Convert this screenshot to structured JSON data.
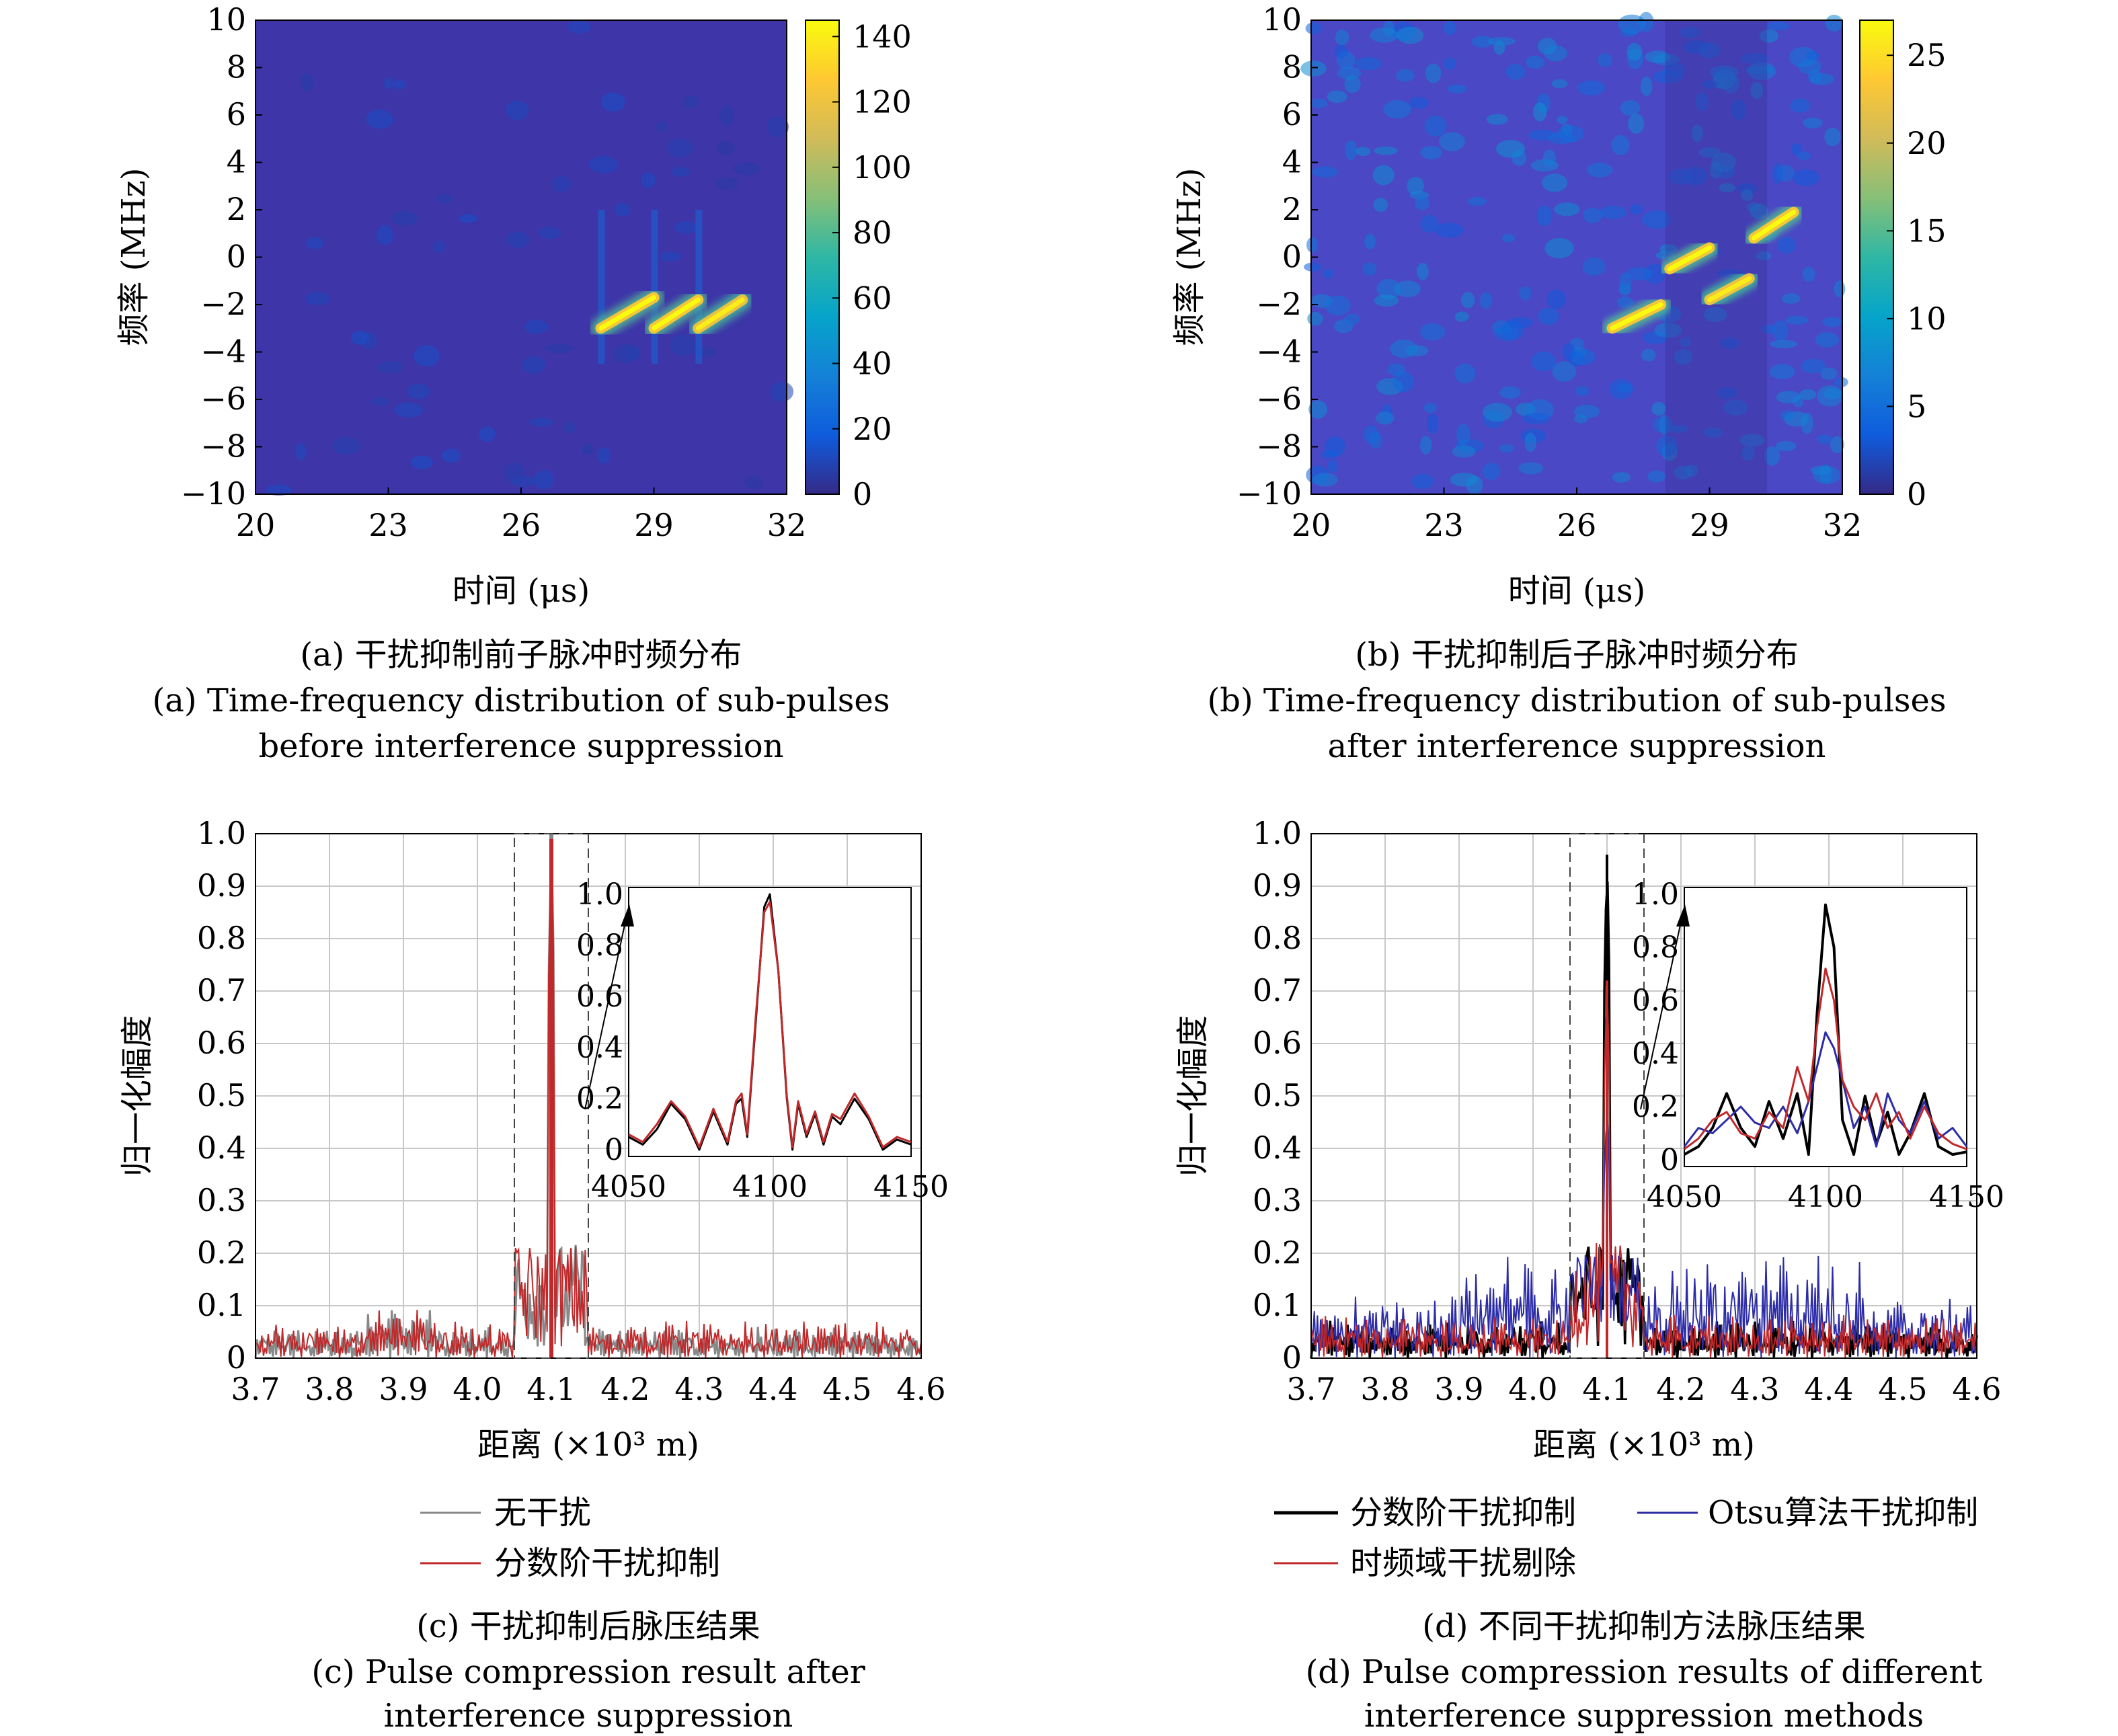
{
  "panels": {
    "a": {
      "caption_cn": "(a) 干扰抑制前子脉冲时频分布",
      "caption_en_1": "(a) Time-frequency distribution of sub-pulses",
      "caption_en_2": "before interference suppression",
      "xlabel": "时间 (μs)",
      "ylabel": "频率 (MHz)",
      "x_ticks": [
        "20",
        "23",
        "26",
        "29",
        "32"
      ],
      "y_ticks": [
        "10",
        "8",
        "6",
        "4",
        "2",
        "0",
        "−2",
        "−4",
        "−6",
        "−8",
        "−10"
      ],
      "colorbar_ticks": [
        "140",
        "120",
        "100",
        "80",
        "60",
        "40",
        "20",
        "0"
      ]
    },
    "b": {
      "caption_cn": "(b) 干扰抑制后子脉冲时频分布",
      "caption_en_1": "(b) Time-frequency distribution of sub-pulses",
      "caption_en_2": "after interference suppression",
      "xlabel": "时间 (μs)",
      "ylabel": "频率 (MHz)",
      "x_ticks": [
        "20",
        "23",
        "26",
        "29",
        "32"
      ],
      "y_ticks": [
        "10",
        "8",
        "6",
        "4",
        "2",
        "0",
        "−2",
        "−4",
        "−6",
        "−8",
        "−10"
      ],
      "colorbar_ticks": [
        "25",
        "20",
        "15",
        "10",
        "5",
        "0"
      ]
    },
    "c": {
      "caption_cn": "(c) 干扰抑制后脉压结果",
      "caption_en_1": "(c) Pulse compression result after",
      "caption_en_2": "interference suppression",
      "xlabel": "距离 (×10³ m)",
      "ylabel": "归一化幅度",
      "x_ticks": [
        "3.7",
        "3.8",
        "3.9",
        "4.0",
        "4.1",
        "4.2",
        "4.3",
        "4.4",
        "4.5",
        "4.6"
      ],
      "y_ticks": [
        "1.0",
        "0.9",
        "0.8",
        "0.7",
        "0.6",
        "0.5",
        "0.4",
        "0.3",
        "0.2",
        "0.1",
        "0"
      ],
      "inset_x_ticks": [
        "4050",
        "4100",
        "4150"
      ],
      "inset_y_ticks": [
        "1.0",
        "0.8",
        "0.6",
        "0.4",
        "0.2",
        "0"
      ],
      "legend": [
        "无干扰",
        "分数阶干扰抑制"
      ]
    },
    "d": {
      "caption_cn": "(d) 不同干扰抑制方法脉压结果",
      "caption_en_1": "(d) Pulse compression results of different",
      "caption_en_2": "interference suppression methods",
      "xlabel": "距离 (×10³ m)",
      "ylabel": "归一化幅度",
      "x_ticks": [
        "3.7",
        "3.8",
        "3.9",
        "4.0",
        "4.1",
        "4.2",
        "4.3",
        "4.4",
        "4.5",
        "4.6"
      ],
      "y_ticks": [
        "1.0",
        "0.9",
        "0.8",
        "0.7",
        "0.6",
        "0.5",
        "0.4",
        "0.3",
        "0.2",
        "0.1",
        "0"
      ],
      "inset_x_ticks": [
        "4050",
        "4100",
        "4150"
      ],
      "inset_y_ticks": [
        "1.0",
        "0.8",
        "0.6",
        "0.4",
        "0.2",
        "0"
      ],
      "legend": [
        "分数阶干扰抑制",
        "Otsu算法干扰抑制",
        "时频域干扰剔除"
      ]
    }
  },
  "colors": {
    "black": "#000000",
    "red": "#c0282a",
    "blue": "#2c2ca8",
    "grey": "#888888",
    "grid": "#c8c8c8",
    "parula": [
      "#352a87",
      "#0f5cdd",
      "#1481d6",
      "#06a4ca",
      "#2eb7a4",
      "#87bf77",
      "#d1bb59",
      "#fec832",
      "#f9fb0e"
    ]
  },
  "chart_data": [
    {
      "type": "heatmap",
      "panel": "a",
      "xlim": [
        20,
        32
      ],
      "ylim": [
        -10,
        10
      ],
      "clim": [
        0,
        145
      ],
      "background_level": 8,
      "segments": [
        {
          "t0": 27.8,
          "f0": -3.0,
          "t1": 29.0,
          "f1": -1.7,
          "peak": 145
        },
        {
          "t0": 29.0,
          "f0": -3.0,
          "t1": 30.0,
          "f1": -1.8,
          "peak": 145
        },
        {
          "t0": 30.0,
          "f0": -3.0,
          "t1": 31.0,
          "f1": -1.8,
          "peak": 140
        }
      ]
    },
    {
      "type": "heatmap",
      "panel": "b",
      "xlim": [
        20,
        32
      ],
      "ylim": [
        -10,
        10
      ],
      "clim": [
        0,
        27
      ],
      "background_level": 3,
      "segments": [
        {
          "t0": 26.8,
          "f0": -3.0,
          "t1": 27.9,
          "f1": -2.0,
          "peak": 27
        },
        {
          "t0": 28.1,
          "f0": -0.5,
          "t1": 29.0,
          "f1": 0.4,
          "peak": 27
        },
        {
          "t0": 29.0,
          "f0": -1.8,
          "t1": 29.9,
          "f1": -0.9,
          "peak": 26
        },
        {
          "t0": 30.0,
          "f0": 0.8,
          "t1": 30.9,
          "f1": 1.9,
          "peak": 27
        }
      ]
    },
    {
      "type": "line",
      "panel": "c",
      "xlim": [
        3.7,
        4.6
      ],
      "ylim": [
        0,
        1.0
      ],
      "zoom_box_x": [
        4.05,
        4.15
      ],
      "series": [
        {
          "name": "无干扰",
          "peak_x": 4.1,
          "peak": 1.0,
          "sidelobes": [
            0.22,
            0.2,
            0.18,
            0.2,
            0.22
          ],
          "floor": 0.05
        },
        {
          "name": "分数阶干扰抑制",
          "peak_x": 4.1,
          "peak": 0.99,
          "sidelobes": [
            0.23,
            0.21,
            0.2,
            0.21,
            0.23
          ],
          "floor": 0.06
        }
      ],
      "inset": {
        "xlim": [
          4050,
          4150
        ],
        "ylim": [
          0,
          1.0
        ],
        "series": [
          {
            "name": "无干扰",
            "x": [
              4050,
              4055,
              4060,
              4065,
              4070,
              4075,
              4080,
              4085,
              4088,
              4090,
              4092,
              4095,
              4098,
              4100,
              4103,
              4106,
              4108,
              4110,
              4113,
              4116,
              4119,
              4122,
              4125,
              4130,
              4135,
              4140,
              4145,
              4150
            ],
            "y": [
              0.05,
              0.02,
              0.08,
              0.18,
              0.12,
              0.0,
              0.15,
              0.02,
              0.18,
              0.2,
              0.05,
              0.5,
              0.95,
              1.0,
              0.7,
              0.2,
              0.0,
              0.18,
              0.05,
              0.14,
              0.02,
              0.13,
              0.1,
              0.2,
              0.12,
              0.0,
              0.04,
              0.02
            ]
          },
          {
            "name": "分数阶干扰抑制",
            "x": [
              4050,
              4055,
              4060,
              4065,
              4070,
              4075,
              4080,
              4085,
              4088,
              4090,
              4092,
              4095,
              4098,
              4100,
              4103,
              4106,
              4108,
              4110,
              4113,
              4116,
              4119,
              4122,
              4125,
              4130,
              4135,
              4140,
              4145,
              4150
            ],
            "y": [
              0.06,
              0.03,
              0.1,
              0.19,
              0.13,
              0.01,
              0.16,
              0.03,
              0.19,
              0.22,
              0.06,
              0.52,
              0.93,
              0.97,
              0.7,
              0.21,
              0.01,
              0.19,
              0.06,
              0.15,
              0.03,
              0.14,
              0.12,
              0.22,
              0.13,
              0.01,
              0.05,
              0.03
            ]
          }
        ]
      }
    },
    {
      "type": "line",
      "panel": "d",
      "xlim": [
        3.7,
        4.6
      ],
      "ylim": [
        0,
        1.0
      ],
      "zoom_box_x": [
        4.05,
        4.15
      ],
      "series": [
        {
          "name": "分数阶干扰抑制",
          "peak_x": 4.1,
          "peak": 0.96,
          "floor": 0.06
        },
        {
          "name": "Otsu算法干扰抑制",
          "peak_x": 4.1,
          "peak": 0.48,
          "floor": 0.1
        },
        {
          "name": "时频域干扰剔除",
          "peak_x": 4.1,
          "peak": 0.72,
          "floor": 0.07
        }
      ],
      "inset": {
        "xlim": [
          4050,
          4150
        ],
        "ylim": [
          0,
          1.0
        ],
        "series": [
          {
            "name": "分数阶干扰抑制",
            "x": [
              4050,
              4055,
              4060,
              4065,
              4070,
              4075,
              4080,
              4085,
              4090,
              4094,
              4097,
              4100,
              4103,
              4106,
              4110,
              4114,
              4118,
              4122,
              4126,
              4130,
              4135,
              4140,
              4145,
              4150
            ],
            "y": [
              0.02,
              0.05,
              0.12,
              0.25,
              0.12,
              0.05,
              0.22,
              0.08,
              0.25,
              0.02,
              0.55,
              0.96,
              0.8,
              0.15,
              0.02,
              0.24,
              0.06,
              0.18,
              0.02,
              0.1,
              0.25,
              0.05,
              0.02,
              0.03
            ]
          },
          {
            "name": "Otsu算法干扰抑制",
            "x": [
              4050,
              4055,
              4060,
              4065,
              4070,
              4075,
              4080,
              4085,
              4090,
              4094,
              4097,
              4100,
              4103,
              4106,
              4110,
              4114,
              4118,
              4122,
              4126,
              4130,
              4135,
              4140,
              4145,
              4150
            ],
            "y": [
              0.05,
              0.12,
              0.1,
              0.15,
              0.2,
              0.14,
              0.12,
              0.2,
              0.1,
              0.22,
              0.35,
              0.48,
              0.42,
              0.3,
              0.12,
              0.2,
              0.05,
              0.25,
              0.15,
              0.1,
              0.22,
              0.08,
              0.12,
              0.05
            ]
          },
          {
            "name": "时频域干扰剔除",
            "x": [
              4050,
              4055,
              4060,
              4065,
              4070,
              4075,
              4080,
              4085,
              4090,
              4094,
              4097,
              4100,
              4103,
              4106,
              4110,
              4114,
              4118,
              4122,
              4126,
              4130,
              4135,
              4140,
              4145,
              4150
            ],
            "y": [
              0.04,
              0.08,
              0.15,
              0.18,
              0.1,
              0.08,
              0.18,
              0.12,
              0.35,
              0.22,
              0.5,
              0.72,
              0.6,
              0.3,
              0.2,
              0.15,
              0.25,
              0.12,
              0.18,
              0.08,
              0.2,
              0.1,
              0.06,
              0.04
            ]
          }
        ]
      }
    }
  ]
}
